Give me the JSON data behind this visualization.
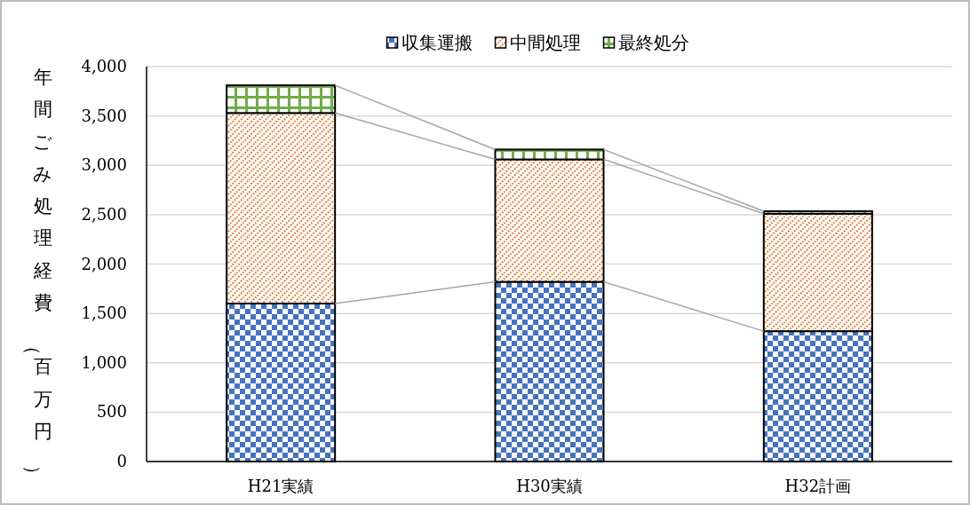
{
  "chart_data": {
    "type": "bar",
    "stacked": true,
    "ylabel": "年間ごみ処理経費（百万円）",
    "categories": [
      "H21実績",
      "H30実績",
      "H32計画"
    ],
    "series": [
      {
        "name": "収集運搬",
        "color": "#4472c4",
        "values": [
          1600,
          1820,
          1320
        ]
      },
      {
        "name": "中間処理",
        "color": "#ed7d31",
        "values": [
          1930,
          1240,
          1190
        ]
      },
      {
        "name": "最終処分",
        "color": "#70ad47",
        "values": [
          280,
          100,
          25
        ]
      }
    ],
    "ylim": [
      0,
      4000
    ],
    "yticks": [
      0,
      500,
      {
        "value": 1000,
        "label": "1,000"
      },
      {
        "value": 1500,
        "label": "1,500"
      },
      {
        "value": 2000,
        "label": "2,000"
      },
      {
        "value": 2500,
        "label": "2,500"
      },
      {
        "value": 3000,
        "label": "3,000"
      },
      {
        "value": 3500,
        "label": "3,500"
      },
      {
        "value": 4000,
        "label": "4,000"
      }
    ],
    "grid": "y",
    "legend": "top"
  }
}
